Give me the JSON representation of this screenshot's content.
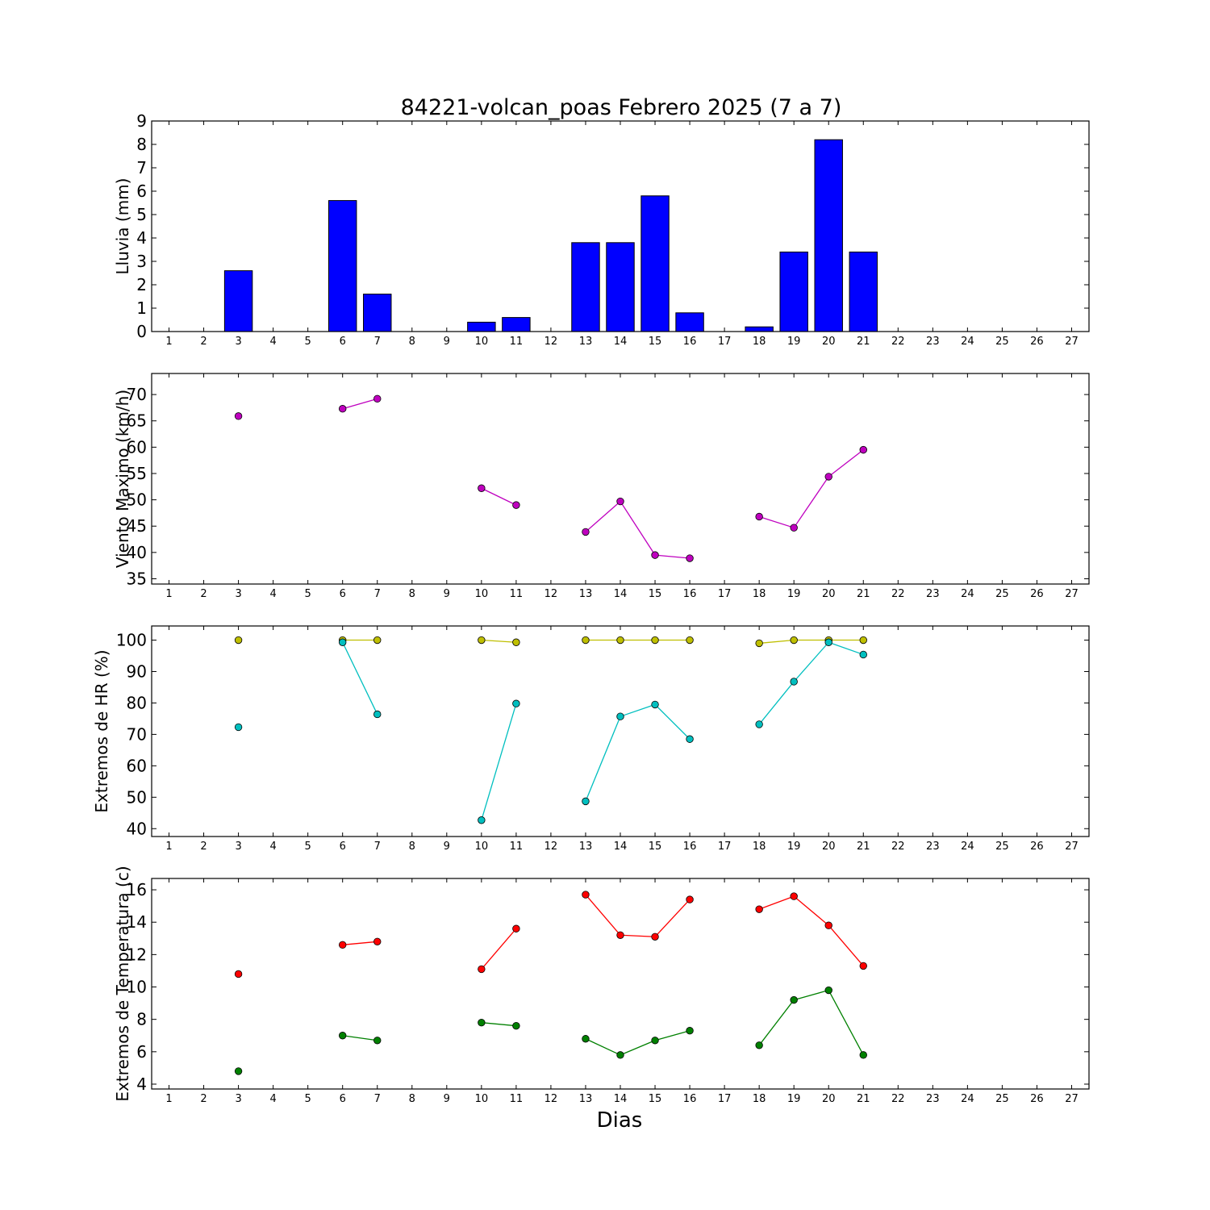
{
  "figure": {
    "title": "84221-volcan_poas Febrero 2025  (7 a 7)",
    "xlabel": "Dias"
  },
  "chart_data": [
    {
      "type": "bar",
      "ylabel": "Lluvia (mm)",
      "xlim": [
        0.5,
        27.5
      ],
      "ylim": [
        0,
        9
      ],
      "xticks": [
        1,
        2,
        3,
        4,
        5,
        6,
        7,
        8,
        9,
        10,
        11,
        12,
        13,
        14,
        15,
        16,
        17,
        18,
        19,
        20,
        21,
        22,
        23,
        24,
        25,
        26,
        27
      ],
      "yticks": [
        0,
        1,
        2,
        3,
        4,
        5,
        6,
        7,
        8,
        9
      ],
      "grid": false,
      "series": [
        {
          "color": "#0000ff",
          "x": [
            3,
            6,
            7,
            10,
            11,
            13,
            14,
            15,
            16,
            18,
            19,
            20,
            21
          ],
          "values": [
            2.6,
            5.6,
            1.6,
            0.4,
            0.6,
            3.8,
            3.8,
            5.8,
            0.8,
            0.2,
            3.4,
            8.2,
            3.4
          ]
        }
      ]
    },
    {
      "type": "line",
      "ylabel": "Viento Maximo (km/h)",
      "xlim": [
        0.5,
        27.5
      ],
      "ylim": [
        34,
        74
      ],
      "xticks": [
        1,
        2,
        3,
        4,
        5,
        6,
        7,
        8,
        9,
        10,
        11,
        12,
        13,
        14,
        15,
        16,
        17,
        18,
        19,
        20,
        21,
        22,
        23,
        24,
        25,
        26,
        27
      ],
      "yticks": [
        35,
        40,
        45,
        50,
        55,
        60,
        65,
        70
      ],
      "grid": false,
      "series": [
        {
          "color": "#bf00bf",
          "x": [
            3,
            6,
            7,
            10,
            11,
            13,
            14,
            15,
            16,
            18,
            19,
            20,
            21
          ],
          "values": [
            65.9,
            67.3,
            69.2,
            52.2,
            49.0,
            43.9,
            49.7,
            39.5,
            38.9,
            46.8,
            44.7,
            54.4,
            59.5
          ]
        }
      ]
    },
    {
      "type": "line",
      "ylabel": "Extremos de HR (%)",
      "xlim": [
        0.5,
        27.5
      ],
      "ylim": [
        37.5,
        104.5
      ],
      "xticks": [
        1,
        2,
        3,
        4,
        5,
        6,
        7,
        8,
        9,
        10,
        11,
        12,
        13,
        14,
        15,
        16,
        17,
        18,
        19,
        20,
        21,
        22,
        23,
        24,
        25,
        26,
        27
      ],
      "yticks": [
        40,
        50,
        60,
        70,
        80,
        90,
        100
      ],
      "grid": false,
      "series": [
        {
          "color": "#bfbf00",
          "x": [
            3,
            6,
            7,
            10,
            11,
            13,
            14,
            15,
            16,
            18,
            19,
            20,
            21
          ],
          "values": [
            100,
            100,
            100,
            100,
            99.3,
            100,
            100,
            100,
            100,
            99,
            100,
            100,
            100
          ]
        },
        {
          "color": "#00bfbf",
          "x": [
            3,
            6,
            7,
            10,
            11,
            13,
            14,
            15,
            16,
            18,
            19,
            20,
            21
          ],
          "values": [
            72.3,
            99.3,
            76.4,
            42.7,
            79.8,
            48.7,
            75.7,
            79.5,
            68.5,
            73.2,
            86.8,
            99.3,
            95.4
          ]
        }
      ]
    },
    {
      "type": "line",
      "ylabel": "Extremos de Temperatura (c)",
      "xlim": [
        0.5,
        27.5
      ],
      "ylim": [
        3.7,
        16.7
      ],
      "xticks": [
        1,
        2,
        3,
        4,
        5,
        6,
        7,
        8,
        9,
        10,
        11,
        12,
        13,
        14,
        15,
        16,
        17,
        18,
        19,
        20,
        21,
        22,
        23,
        24,
        25,
        26,
        27
      ],
      "yticks": [
        4,
        6,
        8,
        10,
        12,
        14,
        16
      ],
      "grid": false,
      "series": [
        {
          "color": "#ff0000",
          "x": [
            3,
            6,
            7,
            10,
            11,
            13,
            14,
            15,
            16,
            18,
            19,
            20,
            21
          ],
          "values": [
            10.8,
            12.6,
            12.8,
            11.1,
            13.6,
            15.7,
            13.2,
            13.1,
            15.4,
            14.8,
            15.6,
            13.8,
            11.3
          ]
        },
        {
          "color": "#008000",
          "x": [
            3,
            6,
            7,
            10,
            11,
            13,
            14,
            15,
            16,
            18,
            19,
            20,
            21
          ],
          "values": [
            4.8,
            7.0,
            6.7,
            7.8,
            7.6,
            6.8,
            5.8,
            6.7,
            7.3,
            6.4,
            9.2,
            9.8,
            5.8
          ]
        }
      ]
    }
  ]
}
